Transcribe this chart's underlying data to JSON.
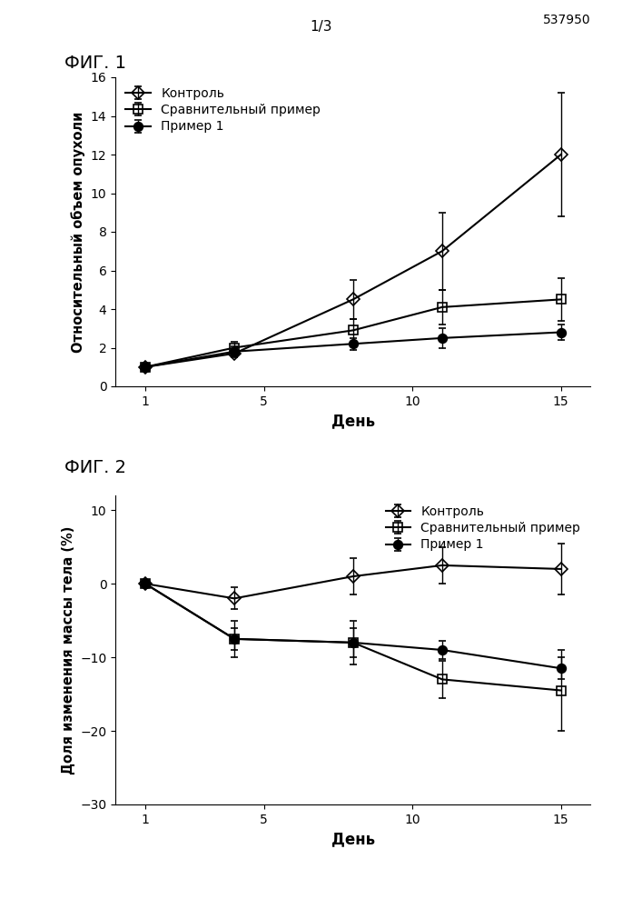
{
  "fig1": {
    "title": "ФИГ. 1",
    "xlabel": "День",
    "ylabel": "Относительный объем опухоли",
    "xlim": [
      0,
      16
    ],
    "ylim": [
      0,
      16
    ],
    "xticks": [
      1,
      5,
      10,
      15
    ],
    "yticks": [
      0,
      2,
      4,
      6,
      8,
      10,
      12,
      14,
      16
    ],
    "series": [
      {
        "label": "Контроль",
        "x": [
          1,
          4,
          8,
          11,
          15
        ],
        "y": [
          1.0,
          1.7,
          4.5,
          7.0,
          12.0
        ],
        "yerr": [
          0.05,
          0.2,
          1.0,
          2.0,
          3.2
        ],
        "marker": "D",
        "color": "black",
        "fillstyle": "none",
        "markersize": 7
      },
      {
        "label": "Сравнительный пример",
        "x": [
          1,
          4,
          8,
          11,
          15
        ],
        "y": [
          1.0,
          2.0,
          2.9,
          4.1,
          4.5
        ],
        "yerr": [
          0.05,
          0.3,
          0.6,
          0.9,
          1.1
        ],
        "marker": "s",
        "color": "black",
        "fillstyle": "none",
        "markersize": 7
      },
      {
        "label": "Пример 1",
        "x": [
          1,
          4,
          8,
          11,
          15
        ],
        "y": [
          1.0,
          1.8,
          2.2,
          2.5,
          2.8
        ],
        "yerr": [
          0.05,
          0.25,
          0.3,
          0.5,
          0.4
        ],
        "marker": "o",
        "color": "black",
        "fillstyle": "full",
        "markersize": 7
      }
    ]
  },
  "fig2": {
    "title": "ФИГ. 2",
    "xlabel": "День",
    "ylabel": "Доля изменения массы тела (%)",
    "xlim": [
      0,
      16
    ],
    "ylim": [
      -30,
      12
    ],
    "xticks": [
      1,
      5,
      10,
      15
    ],
    "yticks": [
      -30,
      -20,
      -10,
      0,
      10
    ],
    "series": [
      {
        "label": "Контроль",
        "x": [
          1,
          4,
          8,
          11,
          15
        ],
        "y": [
          0.0,
          -2.0,
          1.0,
          2.5,
          2.0
        ],
        "yerr": [
          0.05,
          1.5,
          2.5,
          2.5,
          3.5
        ],
        "marker": "D",
        "color": "black",
        "fillstyle": "none",
        "markersize": 7
      },
      {
        "label": "Сравнительный пример",
        "x": [
          1,
          4,
          8,
          11,
          15
        ],
        "y": [
          0.0,
          -7.5,
          -8.0,
          -13.0,
          -14.5
        ],
        "yerr": [
          0.05,
          2.5,
          3.0,
          2.5,
          5.5
        ],
        "marker": "s",
        "color": "black",
        "fillstyle": "none",
        "markersize": 7
      },
      {
        "label": "Пример 1",
        "x": [
          1,
          4,
          8,
          11,
          15
        ],
        "y": [
          0.0,
          -7.5,
          -8.0,
          -9.0,
          -11.5
        ],
        "yerr": [
          0.05,
          1.5,
          2.0,
          1.2,
          1.5
        ],
        "marker": "o",
        "color": "black",
        "fillstyle": "full",
        "markersize": 7
      }
    ]
  },
  "page_number": "537950",
  "page_label": "1/3",
  "background_color": "#ffffff",
  "linewidth": 1.5
}
